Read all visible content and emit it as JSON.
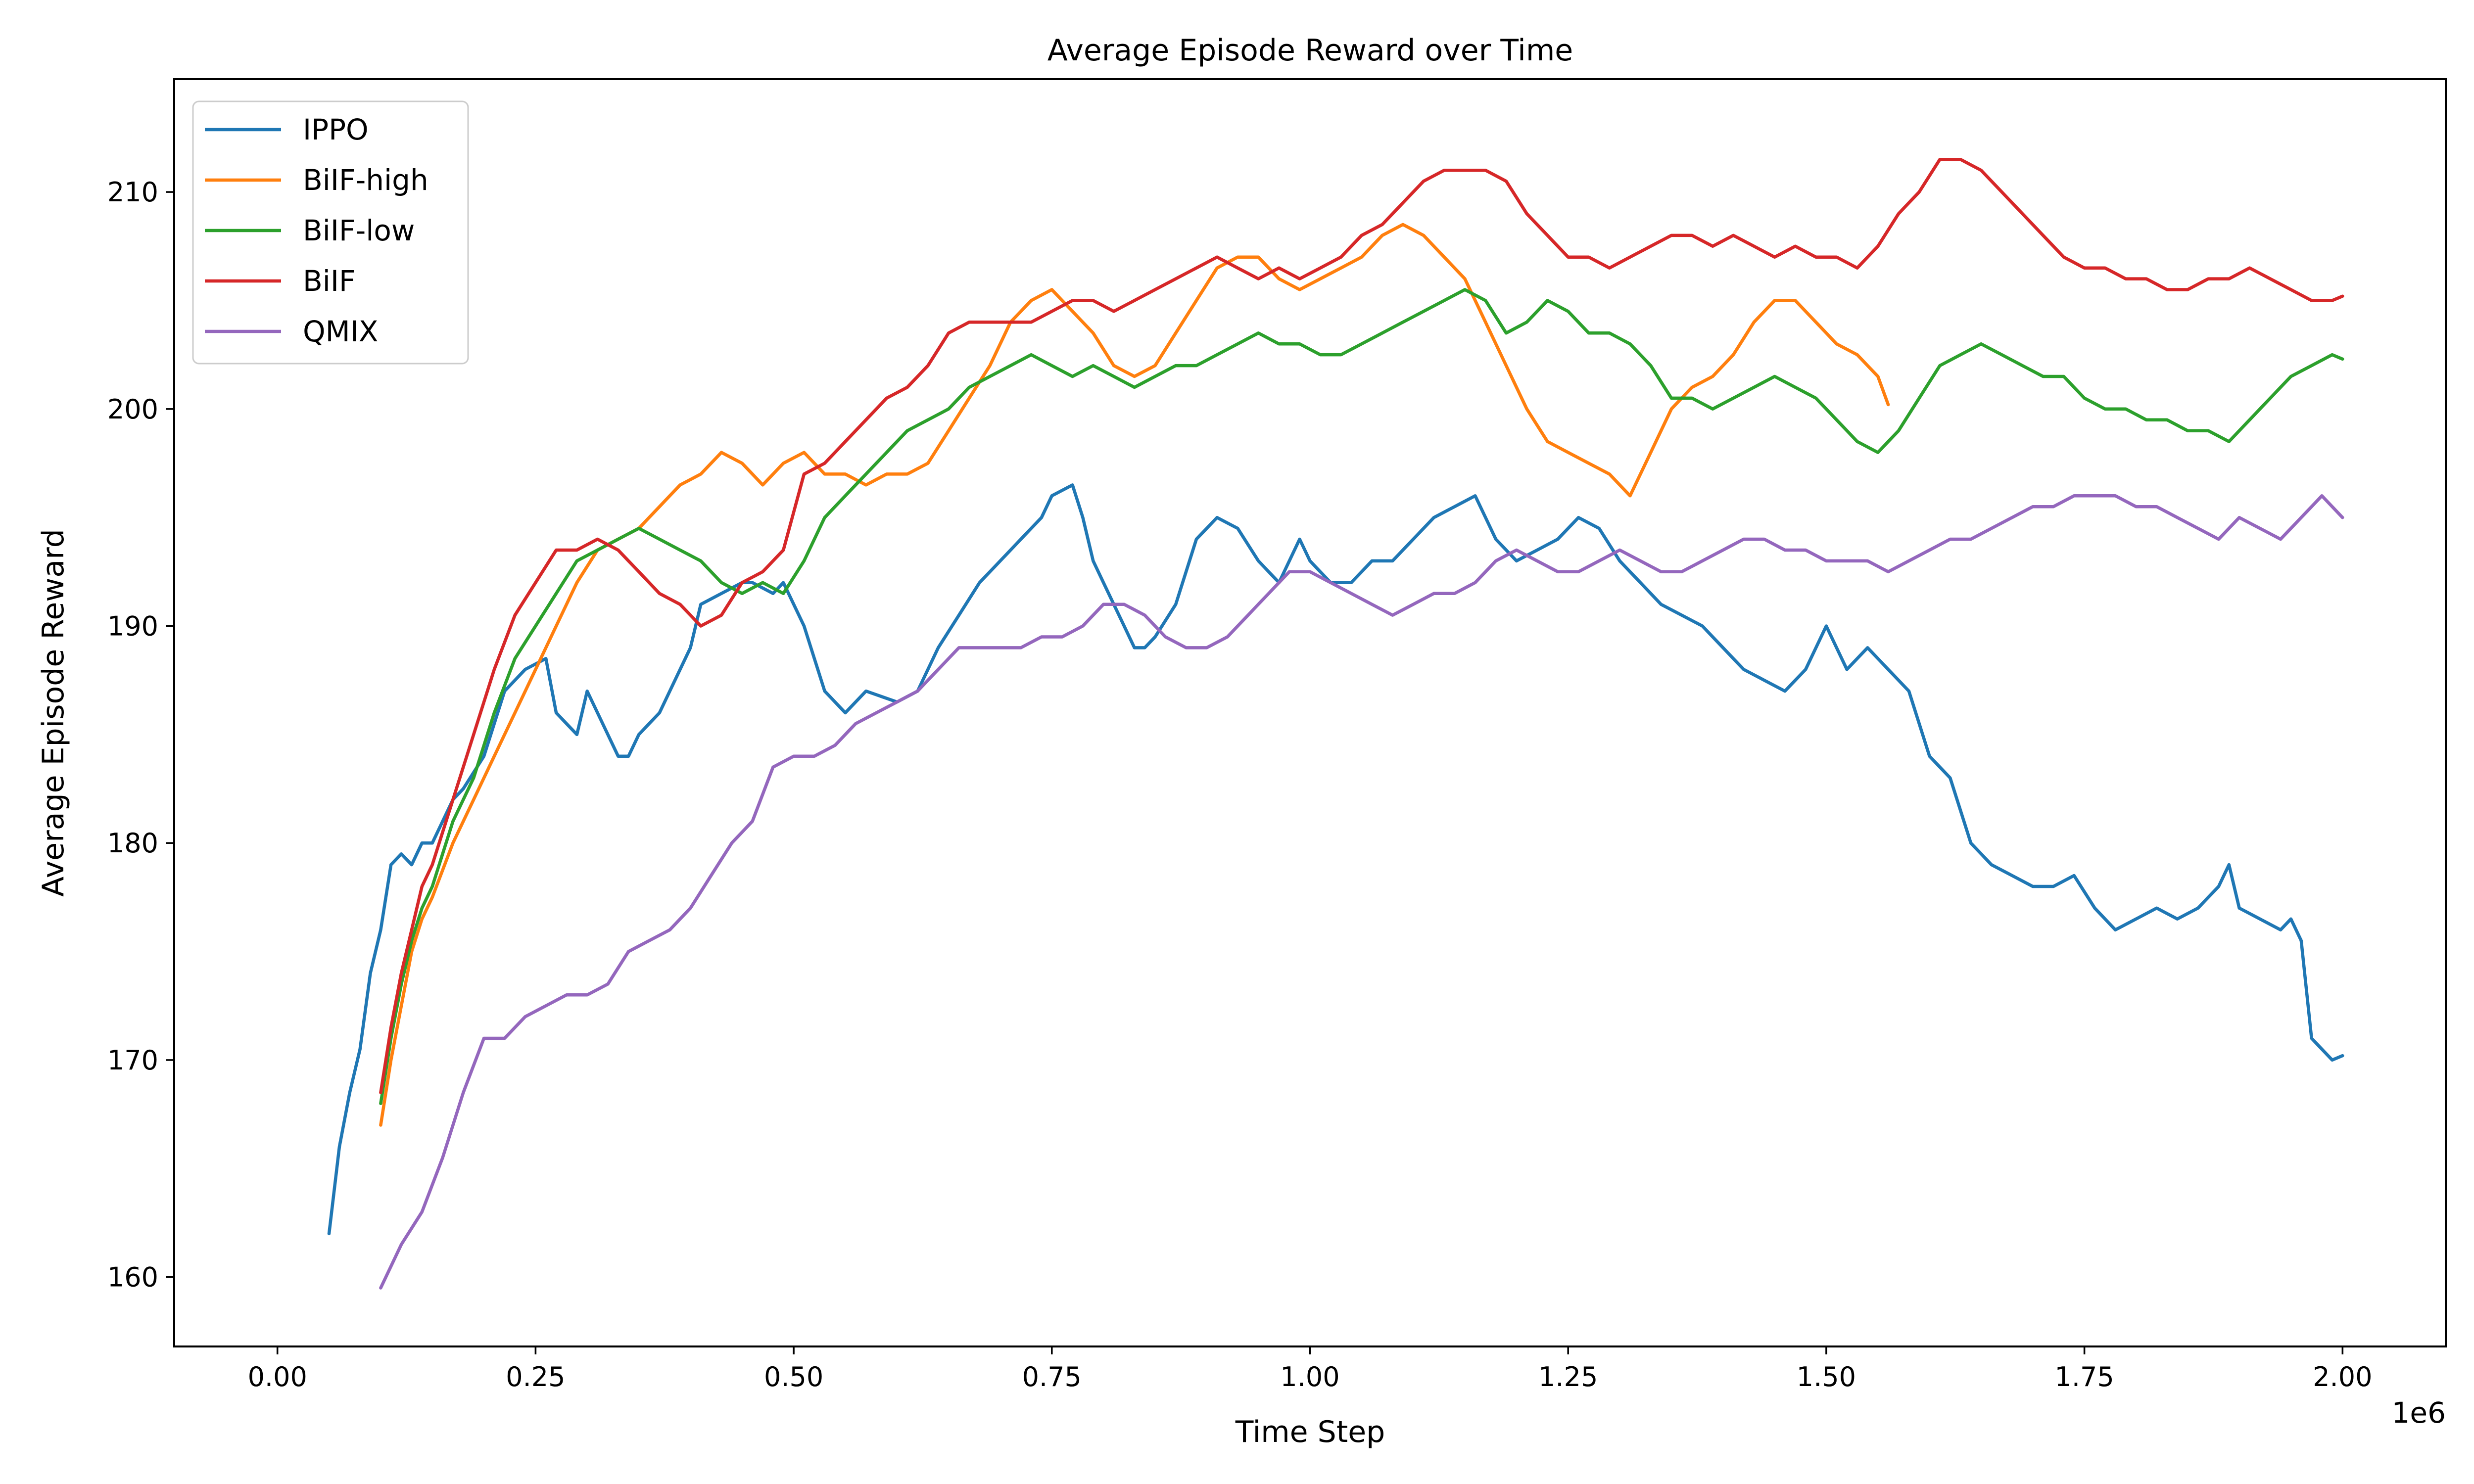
{
  "chart_data": {
    "type": "line",
    "title": "Average Episode Reward over Time",
    "xlabel": "Time Step",
    "ylabel": "Average Episode Reward",
    "x_offset_label": "1e6",
    "xlim": [
      -0.1,
      2.1
    ],
    "ylim": [
      156.8,
      215.2
    ],
    "x_ticks": [
      0.0,
      0.25,
      0.5,
      0.75,
      1.0,
      1.25,
      1.5,
      1.75,
      2.0
    ],
    "x_tick_labels": [
      "0.00",
      "0.25",
      "0.50",
      "0.75",
      "1.00",
      "1.25",
      "1.50",
      "1.75",
      "2.00"
    ],
    "y_ticks": [
      160,
      170,
      180,
      190,
      200,
      210
    ],
    "y_tick_labels": [
      "160",
      "170",
      "180",
      "190",
      "200",
      "210"
    ],
    "grid": false,
    "legend_position": "top-left",
    "series": [
      {
        "name": "IPPO",
        "color": "#1f77b4",
        "x": [
          0.05,
          0.06,
          0.07,
          0.08,
          0.09,
          0.1,
          0.11,
          0.12,
          0.13,
          0.14,
          0.15,
          0.17,
          0.18,
          0.2,
          0.22,
          0.24,
          0.26,
          0.27,
          0.29,
          0.3,
          0.31,
          0.33,
          0.34,
          0.35,
          0.37,
          0.39,
          0.4,
          0.41,
          0.43,
          0.45,
          0.46,
          0.48,
          0.49,
          0.5,
          0.51,
          0.53,
          0.55,
          0.57,
          0.6,
          0.62,
          0.64,
          0.66,
          0.68,
          0.7,
          0.72,
          0.74,
          0.75,
          0.77,
          0.78,
          0.79,
          0.8,
          0.81,
          0.82,
          0.83,
          0.84,
          0.85,
          0.87,
          0.89,
          0.91,
          0.93,
          0.95,
          0.97,
          0.99,
          1.0,
          1.02,
          1.04,
          1.06,
          1.08,
          1.1,
          1.12,
          1.14,
          1.16,
          1.18,
          1.2,
          1.22,
          1.24,
          1.26,
          1.28,
          1.3,
          1.32,
          1.34,
          1.36,
          1.38,
          1.4,
          1.42,
          1.44,
          1.46,
          1.48,
          1.5,
          1.52,
          1.54,
          1.56,
          1.58,
          1.6,
          1.62,
          1.64,
          1.66,
          1.68,
          1.7,
          1.72,
          1.74,
          1.76,
          1.78,
          1.8,
          1.82,
          1.84,
          1.86,
          1.88,
          1.89,
          1.9,
          1.92,
          1.94,
          1.95,
          1.96,
          1.97,
          1.98,
          1.99,
          2.0
        ],
        "y": [
          162,
          166,
          168.5,
          170.5,
          174,
          176,
          179,
          179.5,
          179,
          180,
          180,
          182,
          182.5,
          184,
          187,
          188,
          188.5,
          186,
          185,
          187,
          186,
          184,
          184,
          185,
          186,
          188,
          189,
          191,
          191.5,
          192,
          192,
          191.5,
          192,
          191,
          190,
          187,
          186,
          187,
          186.5,
          187,
          189,
          190.5,
          192,
          193,
          194,
          195,
          196,
          196.5,
          195,
          193,
          192,
          191,
          190,
          189,
          189,
          189.5,
          191,
          194,
          195,
          194.5,
          193,
          192,
          194,
          193,
          192,
          192,
          193,
          193,
          194,
          195,
          195.5,
          196,
          194,
          193,
          193.5,
          194,
          195,
          194.5,
          193,
          192,
          191,
          190.5,
          190,
          189,
          188,
          187.5,
          187,
          188,
          190,
          188,
          189,
          188,
          187,
          184,
          183,
          180,
          179,
          178.5,
          178,
          178,
          178.5,
          177,
          176,
          176.5,
          177,
          176.5,
          177,
          178,
          179,
          177,
          176.5,
          176,
          176.5,
          175.5,
          171,
          170.5,
          170,
          170.2
        ]
      },
      {
        "name": "BiIF-high",
        "color": "#ff7f0e",
        "x": [
          0.1,
          0.11,
          0.12,
          0.13,
          0.14,
          0.15,
          0.17,
          0.19,
          0.21,
          0.23,
          0.25,
          0.27,
          0.29,
          0.31,
          0.33,
          0.35,
          0.37,
          0.39,
          0.41,
          0.43,
          0.45,
          0.47,
          0.49,
          0.51,
          0.53,
          0.55,
          0.57,
          0.59,
          0.61,
          0.63,
          0.65,
          0.67,
          0.69,
          0.71,
          0.73,
          0.75,
          0.77,
          0.79,
          0.81,
          0.83,
          0.85,
          0.87,
          0.89,
          0.91,
          0.93,
          0.95,
          0.97,
          0.99,
          1.01,
          1.03,
          1.05,
          1.07,
          1.09,
          1.11,
          1.13,
          1.15,
          1.17,
          1.19,
          1.21,
          1.23,
          1.25,
          1.27,
          1.29,
          1.31,
          1.33,
          1.35,
          1.37,
          1.39,
          1.41,
          1.43,
          1.45,
          1.47,
          1.49,
          1.51,
          1.53,
          1.55,
          1.56
        ],
        "y": [
          167,
          170,
          172.5,
          175,
          176.5,
          177.5,
          180,
          182,
          184,
          186,
          188,
          190,
          192,
          193.5,
          194,
          194.5,
          195.5,
          196.5,
          197,
          198,
          197.5,
          196.5,
          197.5,
          198,
          197,
          197,
          196.5,
          197,
          197,
          197.5,
          199,
          200.5,
          202,
          204,
          205,
          205.5,
          204.5,
          203.5,
          202,
          201.5,
          202,
          203.5,
          205,
          206.5,
          207,
          207,
          206,
          205.5,
          206,
          206.5,
          207,
          208,
          208.5,
          208,
          207,
          206,
          204,
          202,
          200,
          198.5,
          198,
          197.5,
          197,
          196,
          198,
          200,
          201,
          201.5,
          202.5,
          204,
          205,
          205,
          204,
          203,
          202.5,
          201.5,
          200.2
        ]
      },
      {
        "name": "BiIF-low",
        "color": "#2ca02c",
        "x": [
          0.1,
          0.11,
          0.12,
          0.13,
          0.14,
          0.15,
          0.17,
          0.19,
          0.21,
          0.23,
          0.25,
          0.27,
          0.29,
          0.31,
          0.33,
          0.35,
          0.37,
          0.39,
          0.41,
          0.43,
          0.45,
          0.47,
          0.49,
          0.51,
          0.53,
          0.55,
          0.57,
          0.59,
          0.61,
          0.63,
          0.65,
          0.67,
          0.69,
          0.71,
          0.73,
          0.75,
          0.77,
          0.79,
          0.81,
          0.83,
          0.85,
          0.87,
          0.89,
          0.91,
          0.93,
          0.95,
          0.97,
          0.99,
          1.01,
          1.03,
          1.05,
          1.07,
          1.09,
          1.11,
          1.13,
          1.15,
          1.17,
          1.19,
          1.21,
          1.23,
          1.25,
          1.27,
          1.29,
          1.31,
          1.33,
          1.35,
          1.37,
          1.39,
          1.41,
          1.43,
          1.45,
          1.47,
          1.49,
          1.51,
          1.53,
          1.55,
          1.57,
          1.59,
          1.61,
          1.63,
          1.65,
          1.67,
          1.69,
          1.71,
          1.73,
          1.75,
          1.77,
          1.79,
          1.81,
          1.83,
          1.85,
          1.87,
          1.89,
          1.91,
          1.93,
          1.95,
          1.97,
          1.99,
          2.0
        ],
        "y": [
          168,
          171,
          173.5,
          175.5,
          177,
          178,
          181,
          183,
          186,
          188.5,
          190,
          191.5,
          193,
          193.5,
          194,
          194.5,
          194,
          193.5,
          193,
          192,
          191.5,
          192,
          191.5,
          193,
          195,
          196,
          197,
          198,
          199,
          199.5,
          200,
          201,
          201.5,
          202,
          202.5,
          202,
          201.5,
          202,
          201.5,
          201,
          201.5,
          202,
          202,
          202.5,
          203,
          203.5,
          203,
          203,
          202.5,
          202.5,
          203,
          203.5,
          204,
          204.5,
          205,
          205.5,
          205,
          203.5,
          204,
          205,
          204.5,
          203.5,
          203.5,
          203,
          202,
          200.5,
          200.5,
          200,
          200.5,
          201,
          201.5,
          201,
          200.5,
          199.5,
          198.5,
          198,
          199,
          200.5,
          202,
          202.5,
          203,
          202.5,
          202,
          201.5,
          201.5,
          200.5,
          200,
          200,
          199.5,
          199.5,
          199,
          199,
          198.5,
          199.5,
          200.5,
          201.5,
          202,
          202.5,
          202.3
        ]
      },
      {
        "name": "BiIF",
        "color": "#d62728",
        "x": [
          0.1,
          0.11,
          0.12,
          0.13,
          0.14,
          0.15,
          0.17,
          0.19,
          0.21,
          0.23,
          0.25,
          0.27,
          0.29,
          0.31,
          0.33,
          0.35,
          0.37,
          0.39,
          0.41,
          0.43,
          0.45,
          0.47,
          0.49,
          0.51,
          0.53,
          0.55,
          0.57,
          0.59,
          0.61,
          0.63,
          0.65,
          0.67,
          0.69,
          0.71,
          0.73,
          0.75,
          0.77,
          0.79,
          0.81,
          0.83,
          0.85,
          0.87,
          0.89,
          0.91,
          0.93,
          0.95,
          0.97,
          0.99,
          1.01,
          1.03,
          1.05,
          1.07,
          1.09,
          1.11,
          1.13,
          1.15,
          1.17,
          1.19,
          1.21,
          1.23,
          1.25,
          1.27,
          1.29,
          1.31,
          1.33,
          1.35,
          1.37,
          1.39,
          1.41,
          1.43,
          1.45,
          1.47,
          1.49,
          1.51,
          1.53,
          1.55,
          1.57,
          1.59,
          1.61,
          1.63,
          1.65,
          1.67,
          1.69,
          1.71,
          1.73,
          1.75,
          1.77,
          1.79,
          1.81,
          1.83,
          1.85,
          1.87,
          1.89,
          1.91,
          1.93,
          1.95,
          1.97,
          1.99,
          2.0
        ],
        "y": [
          168.5,
          171.5,
          174,
          176,
          178,
          179,
          182,
          185,
          188,
          190.5,
          192,
          193.5,
          193.5,
          194,
          193.5,
          192.5,
          191.5,
          191,
          190,
          190.5,
          192,
          192.5,
          193.5,
          197,
          197.5,
          198.5,
          199.5,
          200.5,
          201,
          202,
          203.5,
          204,
          204,
          204,
          204,
          204.5,
          205,
          205,
          204.5,
          205,
          205.5,
          206,
          206.5,
          207,
          206.5,
          206,
          206.5,
          206,
          206.5,
          207,
          208,
          208.5,
          209.5,
          210.5,
          211,
          211,
          211,
          210.5,
          209,
          208,
          207,
          207,
          206.5,
          207,
          207.5,
          208,
          208,
          207.5,
          208,
          207.5,
          207,
          207.5,
          207,
          207,
          206.5,
          207.5,
          209,
          210,
          211.5,
          211.5,
          211,
          210,
          209,
          208,
          207,
          206.5,
          206.5,
          206,
          206,
          205.5,
          205.5,
          206,
          206,
          206.5,
          206,
          205.5,
          205,
          205,
          205.2
        ]
      },
      {
        "name": "QMIX",
        "color": "#9467bd",
        "x": [
          0.1,
          0.12,
          0.14,
          0.16,
          0.18,
          0.2,
          0.22,
          0.24,
          0.26,
          0.28,
          0.3,
          0.32,
          0.34,
          0.36,
          0.38,
          0.4,
          0.42,
          0.44,
          0.46,
          0.48,
          0.5,
          0.52,
          0.54,
          0.56,
          0.58,
          0.6,
          0.62,
          0.64,
          0.66,
          0.68,
          0.7,
          0.72,
          0.74,
          0.76,
          0.78,
          0.8,
          0.82,
          0.84,
          0.86,
          0.88,
          0.9,
          0.92,
          0.94,
          0.96,
          0.98,
          1.0,
          1.02,
          1.04,
          1.06,
          1.08,
          1.1,
          1.12,
          1.14,
          1.16,
          1.18,
          1.2,
          1.22,
          1.24,
          1.26,
          1.28,
          1.3,
          1.32,
          1.34,
          1.36,
          1.38,
          1.4,
          1.42,
          1.44,
          1.46,
          1.48,
          1.5,
          1.52,
          1.54,
          1.56,
          1.58,
          1.6,
          1.62,
          1.64,
          1.66,
          1.68,
          1.7,
          1.72,
          1.74,
          1.76,
          1.78,
          1.8,
          1.82,
          1.84,
          1.86,
          1.88,
          1.9,
          1.92,
          1.94,
          1.96,
          1.98,
          2.0
        ],
        "y": [
          159.5,
          161.5,
          163,
          165.5,
          168.5,
          171,
          171,
          172,
          172.5,
          173,
          173,
          173.5,
          175,
          175.5,
          176,
          177,
          178.5,
          180,
          181,
          183.5,
          184,
          184,
          184.5,
          185.5,
          186,
          186.5,
          187,
          188,
          189,
          189,
          189,
          189,
          189.5,
          189.5,
          190,
          191,
          191,
          190.5,
          189.5,
          189,
          189,
          189.5,
          190.5,
          191.5,
          192.5,
          192.5,
          192,
          191.5,
          191,
          190.5,
          191,
          191.5,
          191.5,
          192,
          193,
          193.5,
          193,
          192.5,
          192.5,
          193,
          193.5,
          193,
          192.5,
          192.5,
          193,
          193.5,
          194,
          194,
          193.5,
          193.5,
          193,
          193,
          193,
          192.5,
          193,
          193.5,
          194,
          194,
          194.5,
          195,
          195.5,
          195.5,
          196,
          196,
          196,
          195.5,
          195.5,
          195,
          194.5,
          194,
          195,
          194.5,
          194,
          195,
          196,
          195
        ]
      }
    ]
  }
}
